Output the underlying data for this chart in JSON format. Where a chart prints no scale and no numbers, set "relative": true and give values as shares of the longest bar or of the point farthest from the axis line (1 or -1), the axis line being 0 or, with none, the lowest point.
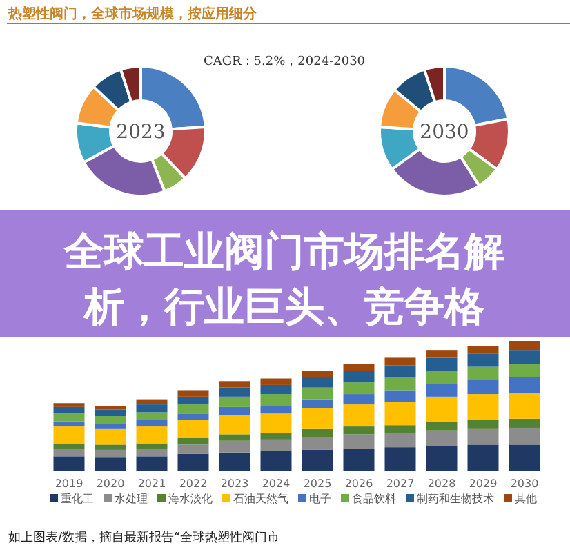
{
  "chart_data": [
    {
      "type": "donut",
      "title": "热塑性阀门，全球市场规模，按应用细分",
      "subtitle": "CAGR：5.2%，2024-2030",
      "annotations": [
        "2023"
      ],
      "categories": [
        null,
        null,
        null,
        null,
        null,
        null,
        null,
        null
      ],
      "values": [
        24,
        14,
        6,
        23,
        10,
        10,
        8,
        5
      ],
      "colors": [
        "#4a7fc1",
        "#c0504d",
        "#8db653",
        "#7b5ea7",
        "#3fa7c4",
        "#f59d3d",
        "#1f4e79",
        "#7b2424"
      ]
    },
    {
      "type": "donut",
      "annotations": [
        "2030"
      ],
      "categories": [
        null,
        null,
        null,
        null,
        null,
        null,
        null,
        null
      ],
      "values": [
        22,
        13,
        6,
        24,
        11,
        10,
        9,
        5
      ],
      "colors": [
        "#4a7fc1",
        "#c0504d",
        "#8db653",
        "#7b5ea7",
        "#3fa7c4",
        "#f59d3d",
        "#1f4e79",
        "#7b2424"
      ]
    },
    {
      "type": "bar",
      "title": "全球工业阀门市场排名解析，行业巨头、竞争格",
      "stacked": true,
      "relative": true,
      "legend": "bottom",
      "annotations": [
        "如上图表/数据，摘自最新报告“全球热塑性阀门市"
      ],
      "categories": [
        "2019",
        "2020",
        "2021",
        "2022",
        "2023",
        "2024",
        "2025",
        "2026",
        "2027",
        "2028",
        "2029",
        "2030"
      ],
      "series": [
        {
          "name": "重化工",
          "color": "#1f3864",
          "values": [
            0.11,
            0.1,
            0.11,
            0.13,
            0.14,
            0.15,
            0.16,
            0.17,
            0.18,
            0.19,
            0.2,
            0.2
          ]
        },
        {
          "name": "水处理",
          "color": "#8c8c8c",
          "values": [
            0.06,
            0.06,
            0.06,
            0.07,
            0.09,
            0.09,
            0.1,
            0.11,
            0.11,
            0.12,
            0.12,
            0.13
          ]
        },
        {
          "name": "海水淡化",
          "color": "#548235",
          "values": [
            0.04,
            0.04,
            0.04,
            0.05,
            0.05,
            0.05,
            0.06,
            0.06,
            0.06,
            0.07,
            0.07,
            0.07
          ]
        },
        {
          "name": "石油天然气",
          "color": "#ffc000",
          "values": [
            0.13,
            0.12,
            0.13,
            0.14,
            0.15,
            0.15,
            0.16,
            0.17,
            0.18,
            0.19,
            0.2,
            0.2
          ]
        },
        {
          "name": "电子",
          "color": "#4472c4",
          "values": [
            0.04,
            0.04,
            0.05,
            0.05,
            0.06,
            0.06,
            0.07,
            0.08,
            0.09,
            0.1,
            0.11,
            0.12
          ]
        },
        {
          "name": "食品饮料",
          "color": "#70ad47",
          "values": [
            0.06,
            0.06,
            0.06,
            0.07,
            0.08,
            0.09,
            0.09,
            0.09,
            0.1,
            0.1,
            0.1,
            0.1
          ]
        },
        {
          "name": "制药和生物技术",
          "color": "#255e91",
          "values": [
            0.05,
            0.05,
            0.06,
            0.06,
            0.07,
            0.07,
            0.08,
            0.09,
            0.09,
            0.1,
            0.1,
            0.11
          ]
        },
        {
          "name": "其他",
          "color": "#9e480e",
          "values": [
            0.03,
            0.03,
            0.04,
            0.05,
            0.05,
            0.05,
            0.05,
            0.05,
            0.06,
            0.06,
            0.06,
            0.07
          ]
        }
      ]
    }
  ]
}
